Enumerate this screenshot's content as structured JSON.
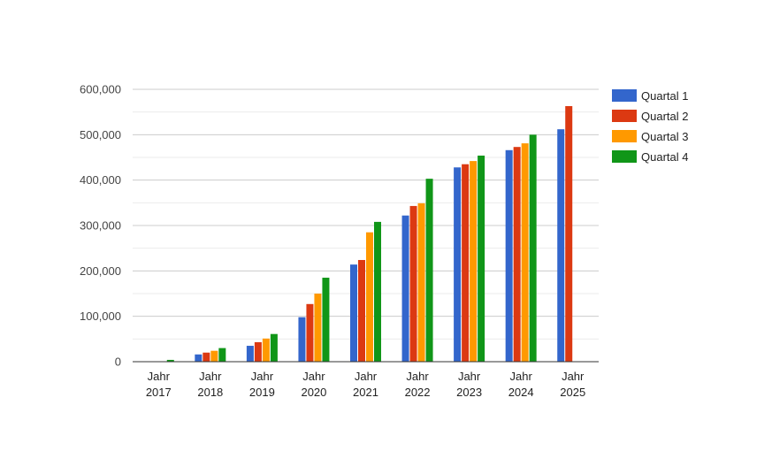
{
  "chart_data": {
    "type": "bar",
    "title": "",
    "xlabel": "",
    "ylabel": "",
    "ylim": [
      0,
      600000
    ],
    "yticks": [
      0,
      100000,
      200000,
      300000,
      400000,
      500000,
      600000
    ],
    "ytick_labels": [
      "0",
      "100,000",
      "200,000",
      "300,000",
      "400,000",
      "500,000",
      "600,000"
    ],
    "grid": true,
    "legend_position": "right",
    "categories": [
      [
        "Jahr",
        "2017"
      ],
      [
        "Jahr",
        "2018"
      ],
      [
        "Jahr",
        "2019"
      ],
      [
        "Jahr",
        "2020"
      ],
      [
        "Jahr",
        "2021"
      ],
      [
        "Jahr",
        "2022"
      ],
      [
        "Jahr",
        "2023"
      ],
      [
        "Jahr",
        "2024"
      ],
      [
        "Jahr",
        "2025"
      ]
    ],
    "series": [
      {
        "name": "Quartal 1",
        "color": "#3366cc",
        "values": [
          0,
          16000,
          35000,
          98000,
          214000,
          322000,
          428000,
          466000,
          512000
        ]
      },
      {
        "name": "Quartal 2",
        "color": "#dc3912",
        "values": [
          0,
          20000,
          43000,
          127000,
          224000,
          343000,
          435000,
          473000,
          563000
        ]
      },
      {
        "name": "Quartal 3",
        "color": "#ff9900",
        "values": [
          0,
          24000,
          51000,
          150000,
          285000,
          349000,
          442000,
          481000,
          null
        ]
      },
      {
        "name": "Quartal 4",
        "color": "#109618",
        "values": [
          4000,
          30000,
          61000,
          185000,
          308000,
          403000,
          454000,
          500000,
          null
        ]
      }
    ]
  }
}
